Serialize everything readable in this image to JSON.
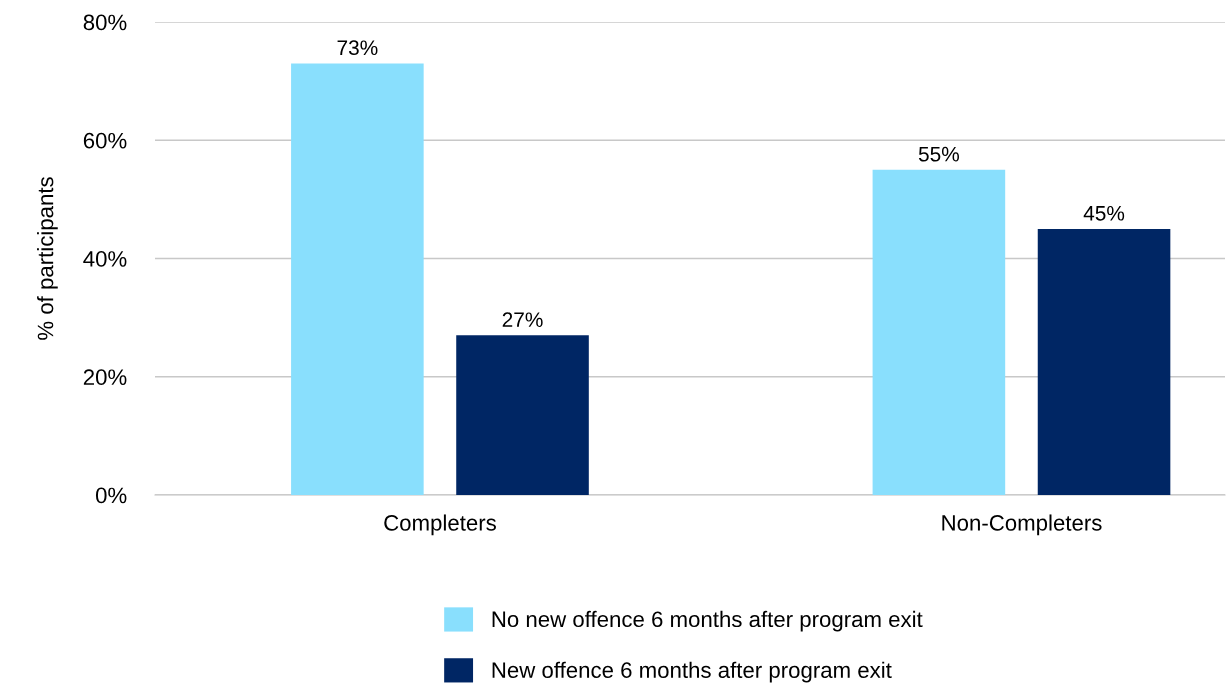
{
  "chart_data": {
    "type": "bar",
    "ylabel": "% of participants",
    "categories": [
      "Completers",
      "Non-Completers"
    ],
    "series": [
      {
        "name": "No new offence 6 months after program exit",
        "color": "#89dffd",
        "values": [
          73,
          55
        ],
        "value_labels": [
          "73%",
          "55%"
        ]
      },
      {
        "name": "New offence 6 months after program exit",
        "color": "#002664",
        "values": [
          27,
          45
        ],
        "value_labels": [
          "27%",
          "45%"
        ]
      }
    ],
    "ylim": [
      0,
      80
    ],
    "yticks": [
      {
        "value": 0,
        "label": "0%"
      },
      {
        "value": 20,
        "label": "20%"
      },
      {
        "value": 40,
        "label": "40%"
      },
      {
        "value": 60,
        "label": "60%"
      },
      {
        "value": 80,
        "label": "80%"
      }
    ],
    "grid": "y",
    "legend": "bottom"
  }
}
